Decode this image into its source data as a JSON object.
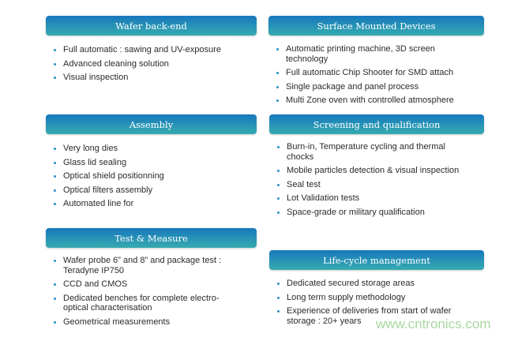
{
  "sections": [
    {
      "title": "Wafer back-end",
      "items": [
        "Full automatic : sawing and UV-exposure",
        "Advanced cleaning solution",
        "Visual inspection"
      ]
    },
    {
      "title": "Assembly",
      "items": [
        "Very long dies",
        "Glass lid sealing",
        "Optical shield positionning",
        "Optical filters assembly",
        "Automated line for"
      ]
    },
    {
      "title": "Test & Measure",
      "items": [
        "Wafer probe 6” and 8” and package test : Teradyne IP750",
        "CCD and CMOS",
        "Dedicated benches for complete electro-optical characterisation",
        "Geometrical measurements"
      ]
    },
    {
      "title": "Surface Mounted Devices",
      "items": [
        "Automatic printing machine, 3D screen technology",
        "Full automatic Chip Shooter for SMD attach",
        "Single package and panel process",
        "Multi Zone oven with controlled atmosphere"
      ]
    },
    {
      "title": "Screening and qualification",
      "items": [
        "Burn-in, Temperature cycling and thermal chocks",
        "Mobile particles detection & visual inspection",
        "Seal test",
        "Lot Validation tests",
        "Space-grade or military qualification"
      ]
    },
    {
      "title": "Life-cycle management",
      "items": [
        "Dedicated secured storage areas",
        "Long term supply methodology",
        "Experience of deliveries from start of wafer storage : 20+ years"
      ]
    }
  ],
  "watermark": "www.cntronics.com",
  "colors": {
    "header_top": "#1778bd",
    "header_bottom": "#36abb0",
    "bullet": "#2a8fc2"
  }
}
